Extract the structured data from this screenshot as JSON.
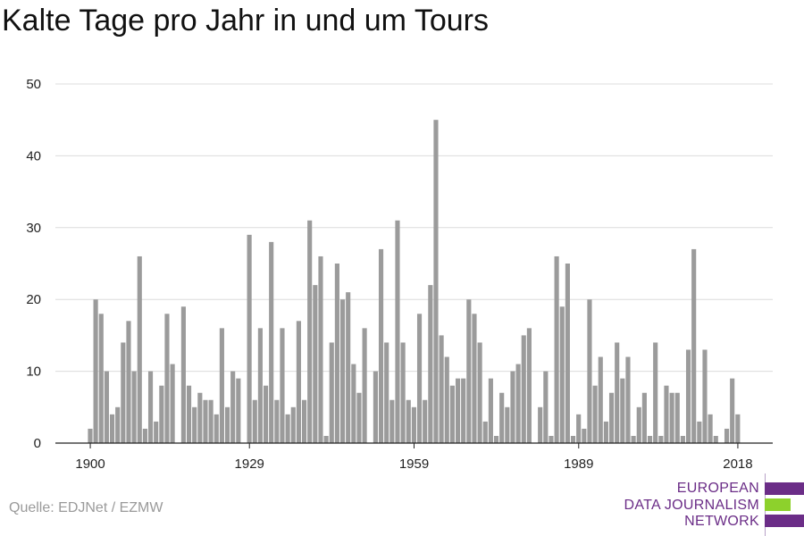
{
  "chart_data": {
    "type": "bar",
    "title": "Kalte Tage pro Jahr in und um Tours",
    "xlabel": "",
    "ylabel": "",
    "ylim": [
      0,
      50
    ],
    "yticks": [
      0,
      10,
      20,
      30,
      40,
      50
    ],
    "xticks": [
      1900,
      1929,
      1959,
      1989,
      2018
    ],
    "xlim": [
      1900,
      2018
    ],
    "grid": true,
    "bar_color": "#9b9b9b",
    "series": [
      {
        "x": [
          1900,
          1901,
          1902,
          1903,
          1904,
          1905,
          1906,
          1907,
          1908,
          1909,
          1910,
          1911,
          1912,
          1913,
          1914,
          1915,
          1916,
          1917,
          1918,
          1919,
          1920,
          1921,
          1922,
          1923,
          1924,
          1925,
          1926,
          1927,
          1928,
          1929,
          1930,
          1931,
          1932,
          1933,
          1934,
          1935,
          1936,
          1937,
          1938,
          1939,
          1940,
          1941,
          1942,
          1943,
          1944,
          1945,
          1946,
          1947,
          1948,
          1949,
          1950,
          1951,
          1952,
          1953,
          1954,
          1955,
          1956,
          1957,
          1958,
          1959,
          1960,
          1961,
          1962,
          1963,
          1964,
          1965,
          1966,
          1967,
          1968,
          1969,
          1970,
          1971,
          1972,
          1973,
          1974,
          1975,
          1976,
          1977,
          1978,
          1979,
          1980,
          1981,
          1982,
          1983,
          1984,
          1985,
          1986,
          1987,
          1988,
          1989,
          1990,
          1991,
          1992,
          1993,
          1994,
          1995,
          1996,
          1997,
          1998,
          1999,
          2000,
          2001,
          2002,
          2003,
          2004,
          2005,
          2006,
          2007,
          2008,
          2009,
          2010,
          2011,
          2012,
          2013,
          2014,
          2015,
          2016,
          2017,
          2018
        ],
        "values": [
          2,
          20,
          18,
          10,
          4,
          5,
          14,
          17,
          10,
          26,
          2,
          10,
          3,
          8,
          18,
          11,
          0,
          19,
          8,
          5,
          7,
          6,
          6,
          4,
          16,
          5,
          10,
          9,
          0,
          29,
          6,
          16,
          8,
          28,
          6,
          16,
          4,
          5,
          17,
          6,
          31,
          22,
          26,
          1,
          14,
          25,
          20,
          21,
          11,
          7,
          16,
          0,
          10,
          27,
          14,
          6,
          31,
          14,
          6,
          5,
          18,
          6,
          22,
          45,
          15,
          12,
          8,
          9,
          9,
          20,
          18,
          14,
          3,
          9,
          1,
          7,
          5,
          10,
          11,
          15,
          16,
          0,
          5,
          10,
          1,
          26,
          19,
          25,
          1,
          4,
          2,
          20,
          8,
          12,
          3,
          7,
          14,
          9,
          12,
          1,
          5,
          7,
          1,
          14,
          1,
          8,
          7,
          7,
          1,
          13,
          27,
          3,
          13,
          4,
          1,
          0,
          2,
          9,
          4
        ]
      }
    ]
  },
  "source": "Quelle: EDJNet / EZMW",
  "logo": {
    "line1": "EUROPEAN",
    "line2": "DATA JOURNALISM",
    "line3": "NETWORK",
    "purple": "#6b2d87",
    "green": "#8dd12c"
  }
}
